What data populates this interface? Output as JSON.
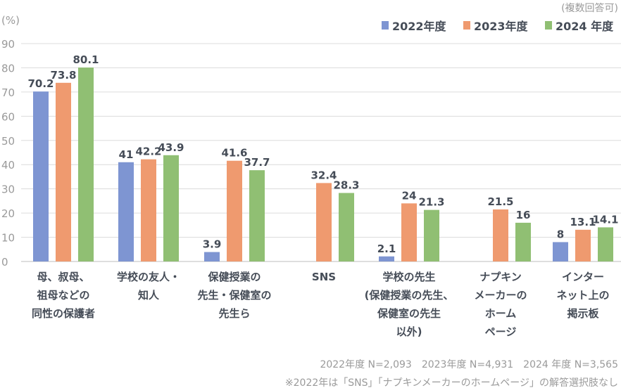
{
  "chart_data": {
    "type": "bar",
    "note_top": "(複数回答可)",
    "ylabel": "(%)",
    "ylim": [
      0,
      90
    ],
    "yticks": [
      0,
      10,
      20,
      30,
      40,
      50,
      60,
      70,
      80,
      90
    ],
    "grid": true,
    "legend_position": "top-right",
    "categories": [
      [
        "母、叔母、",
        "祖母などの",
        "同性の保護者"
      ],
      [
        "学校の友人・",
        "知人"
      ],
      [
        "保健授業の",
        "先生・保健室の",
        "先生ら"
      ],
      [
        "SNS"
      ],
      [
        "学校の先生",
        "(保健授業の先生、",
        "保健室の先生",
        "以外)"
      ],
      [
        "ナプキン",
        "メーカーの",
        "ホーム",
        "ページ"
      ],
      [
        "インター",
        "ネット上の",
        "掲示板"
      ]
    ],
    "series": [
      {
        "name": "2022年度",
        "color": "#7e95d2",
        "values": [
          70.2,
          41,
          3.9,
          null,
          2.1,
          null,
          8
        ]
      },
      {
        "name": "2023年度",
        "color": "#ef9a6f",
        "values": [
          73.8,
          42.2,
          41.6,
          32.4,
          24,
          21.5,
          13.1
        ]
      },
      {
        "name": "2024 年度",
        "color": "#90bf73",
        "values": [
          80.1,
          43.9,
          37.7,
          28.3,
          21.3,
          16,
          14.1
        ]
      }
    ],
    "footnotes": [
      "2022年度 N=2,093　2023年度 N=4,931　2024 年度 N=3,565",
      "※2022年は「SNS」「ナプキンメーカーのホームページ」の解答選択肢なし"
    ]
  }
}
